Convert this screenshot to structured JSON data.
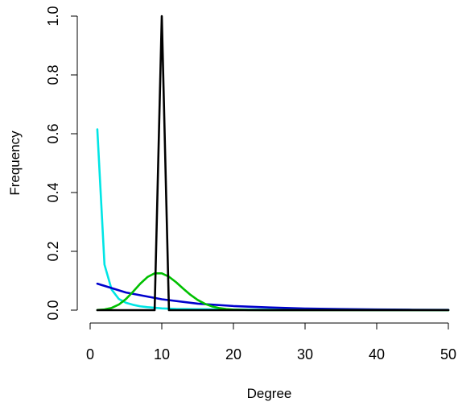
{
  "chart_data": {
    "type": "line",
    "title": "",
    "xlabel": "Degree",
    "ylabel": "Frequency",
    "xlim": [
      0,
      50
    ],
    "ylim": [
      0,
      1.0
    ],
    "x_ticks": [
      0,
      10,
      20,
      30,
      40,
      50
    ],
    "x_tick_labels": [
      "0",
      "10",
      "20",
      "30",
      "40",
      "50"
    ],
    "y_ticks": [
      0.0,
      0.2,
      0.4,
      0.6,
      0.8,
      1.0
    ],
    "y_tick_labels": [
      "0.0",
      "0.2",
      "0.4",
      "0.6",
      "0.8",
      "1.0"
    ],
    "grid": false,
    "legend": false,
    "series": [
      {
        "color": "#00e5e5",
        "x": [
          1,
          2,
          3,
          4,
          5,
          6,
          7,
          8,
          9,
          10,
          12,
          15,
          20,
          30,
          40,
          50
        ],
        "y": [
          0.615,
          0.155,
          0.07,
          0.038,
          0.025,
          0.018,
          0.013,
          0.01,
          0.008,
          0.006,
          0.004,
          0.003,
          0.002,
          0.001,
          0.0005,
          0.0003
        ]
      },
      {
        "color": "#0000cd",
        "x": [
          1,
          5,
          10,
          15,
          20,
          25,
          30,
          35,
          40,
          45,
          50
        ],
        "y": [
          0.09,
          0.06,
          0.037,
          0.022,
          0.014,
          0.009,
          0.0055,
          0.0035,
          0.0022,
          0.0014,
          0.0009
        ]
      },
      {
        "color": "#00c000",
        "x": [
          1,
          2,
          3,
          4,
          5,
          6,
          7,
          8,
          9,
          10,
          11,
          12,
          13,
          14,
          15,
          16,
          17,
          18,
          19,
          20,
          22,
          25,
          30,
          40,
          50
        ],
        "y": [
          0.0005,
          0.0023,
          0.0076,
          0.0189,
          0.0378,
          0.0631,
          0.0901,
          0.1126,
          0.1251,
          0.1251,
          0.1137,
          0.0948,
          0.0729,
          0.0521,
          0.0347,
          0.0217,
          0.0128,
          0.0071,
          0.0037,
          0.0019,
          0.0004,
          0.0001,
          0,
          0,
          0
        ]
      },
      {
        "color": "#000000",
        "x": [
          1,
          9,
          10,
          11,
          50
        ],
        "y": [
          0,
          0,
          1.0,
          0,
          0
        ]
      }
    ]
  }
}
